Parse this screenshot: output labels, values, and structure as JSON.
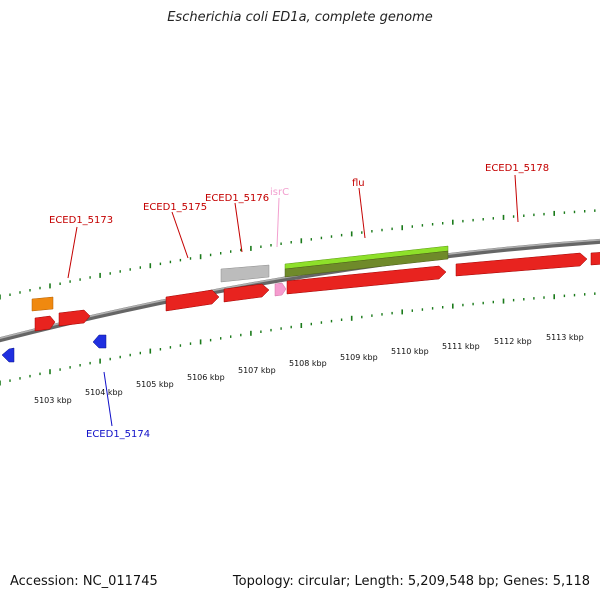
{
  "title": "Escherichia coli ED1a, complete genome",
  "footer": {
    "accession": "Accession: NC_011745",
    "summary": "Topology: circular; Length: 5,209,548 bp; Genes: 5,118"
  },
  "colors": {
    "backbone": "#8a8a8a",
    "tick": "#1a7a1a",
    "gene_red": "#e8231f",
    "gene_blue": "#1f2fe0",
    "gene_orange": "#f0890f",
    "gene_gray": "#bcbcbc",
    "gene_pink": "#f59bcf",
    "gene_green": "#8ee02a",
    "label_red": "#c40000",
    "label_blue": "#1010c8",
    "label_pink": "#f2a0cf"
  },
  "scale": {
    "kbp_labels": [
      "5103 kbp",
      "5104 kbp",
      "5105 kbp",
      "5106 kbp",
      "5107 kbp",
      "5108 kbp",
      "5109 kbp",
      "5110 kbp",
      "5111 kbp",
      "5112 kbp",
      "5113 kbp"
    ]
  },
  "labels": {
    "eced1_5173": "ECED1_5173",
    "eced1_5175": "ECED1_5175",
    "eced1_5176": "ECED1_5176",
    "isrc": "isrC",
    "flu": "flu",
    "eced1_5178": "ECED1_5178",
    "eced1_5174": "ECED1_5174"
  }
}
